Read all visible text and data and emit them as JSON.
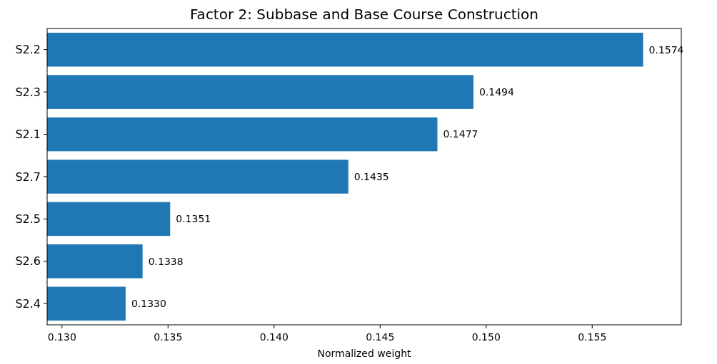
{
  "chart_data": {
    "type": "bar",
    "orientation": "horizontal",
    "title": "Factor 2: Subbase and Base Course Construction",
    "xlabel": "Normalized weight",
    "categories": [
      "S2.2",
      "S2.3",
      "S2.1",
      "S2.7",
      "S2.5",
      "S2.6",
      "S2.4"
    ],
    "values": [
      0.1574,
      0.1494,
      0.1477,
      0.1435,
      0.1351,
      0.1338,
      0.133
    ],
    "value_labels": [
      "0.1574",
      "0.1494",
      "0.1477",
      "0.1435",
      "0.1351",
      "0.1338",
      "0.1330"
    ],
    "color": "#1f77b4",
    "xlim": [
      0.1293,
      0.1592
    ],
    "xticks": [
      {
        "value": 0.13,
        "label": "0.130"
      },
      {
        "value": 0.135,
        "label": "0.135"
      },
      {
        "value": 0.14,
        "label": "0.140"
      },
      {
        "value": 0.145,
        "label": "0.145"
      },
      {
        "value": 0.15,
        "label": "0.150"
      },
      {
        "value": 0.155,
        "label": "0.155"
      }
    ],
    "grid": false
  }
}
